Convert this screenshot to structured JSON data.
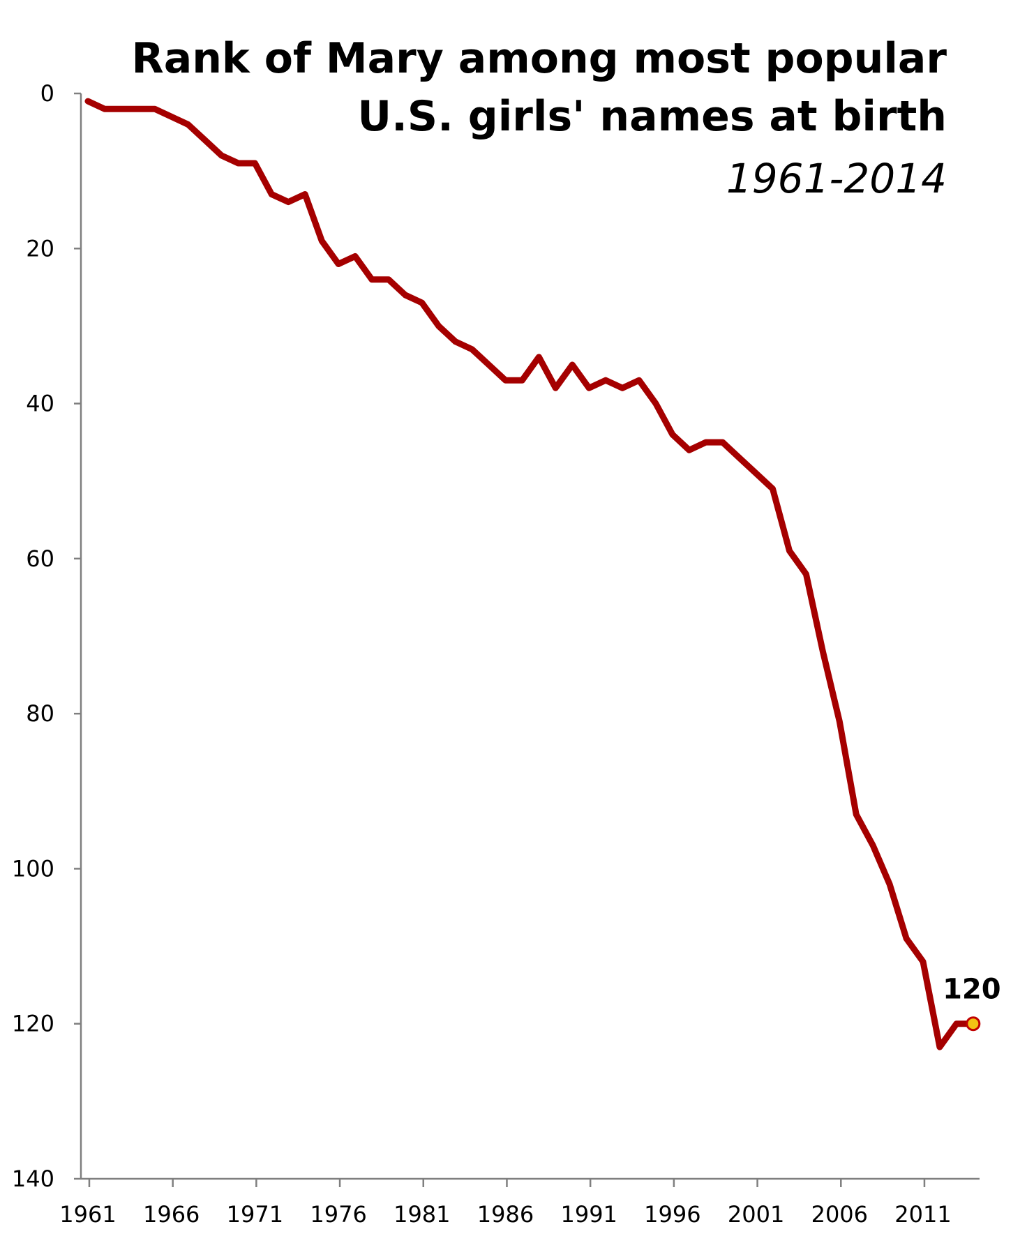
{
  "chart_data": {
    "type": "line",
    "title_line1": "Rank of Mary among most popular",
    "title_line2": "U.S. girls' names at birth",
    "subtitle": "1961-2014",
    "xlabel": "",
    "ylabel": "",
    "y_inverted": true,
    "xlim": [
      1961,
      2014
    ],
    "ylim": [
      0,
      140
    ],
    "x_ticks": [
      "1961",
      "1966",
      "1971",
      "1976",
      "1981",
      "1986",
      "1991",
      "1996",
      "2001",
      "2006",
      "2011"
    ],
    "y_ticks": [
      "0",
      "20",
      "40",
      "60",
      "80",
      "100",
      "120",
      "140"
    ],
    "grid": false,
    "legend": "none",
    "series": [
      {
        "color": "#a50000",
        "x": [
          1961,
          1962,
          1963,
          1964,
          1965,
          1966,
          1967,
          1968,
          1969,
          1970,
          1971,
          1972,
          1973,
          1974,
          1975,
          1976,
          1977,
          1978,
          1979,
          1980,
          1981,
          1982,
          1983,
          1984,
          1985,
          1986,
          1987,
          1988,
          1989,
          1990,
          1991,
          1992,
          1993,
          1994,
          1995,
          1996,
          1997,
          1998,
          1999,
          2000,
          2001,
          2002,
          2003,
          2004,
          2005,
          2006,
          2007,
          2008,
          2009,
          2010,
          2011,
          2012,
          2013,
          2014
        ],
        "y": [
          1,
          2,
          2,
          2,
          2,
          3,
          4,
          6,
          8,
          9,
          9,
          13,
          14,
          13,
          19,
          22,
          21,
          24,
          24,
          26,
          27,
          30,
          32,
          33,
          35,
          37,
          37,
          34,
          38,
          35,
          38,
          37,
          38,
          37,
          40,
          44,
          46,
          45,
          45,
          47,
          49,
          51,
          59,
          62,
          72,
          81,
          93,
          97,
          102,
          109,
          112,
          123,
          120,
          120
        ]
      }
    ],
    "end_label": "120",
    "end_marker_color": "#f2c114"
  }
}
